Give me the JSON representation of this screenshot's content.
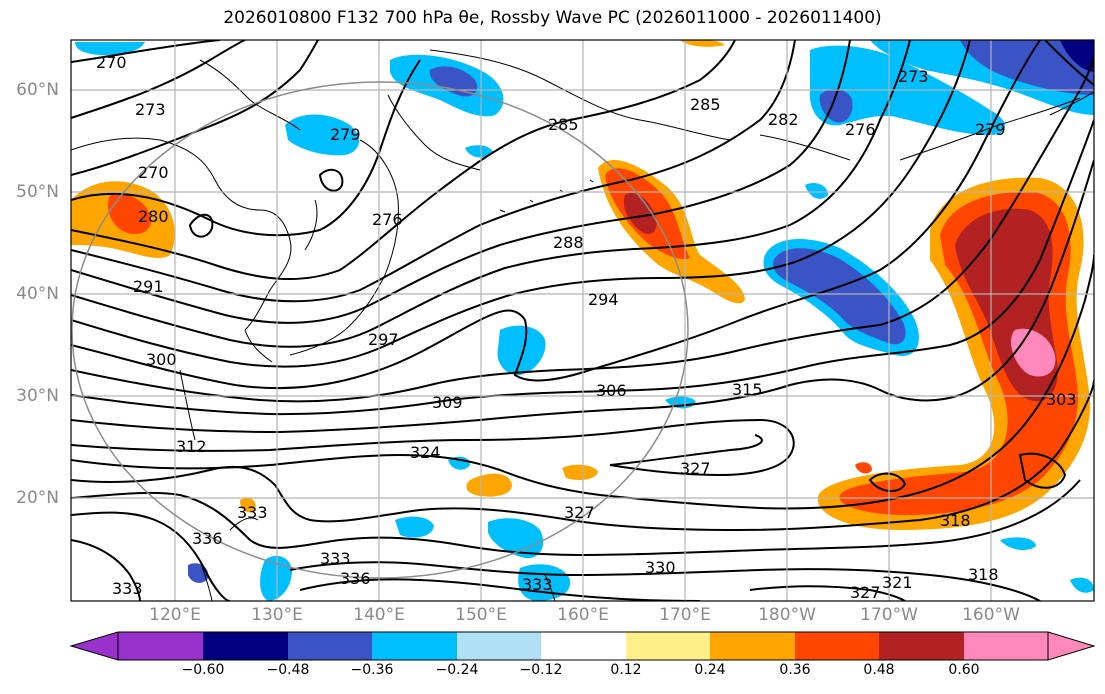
{
  "title": "2026010800 F132 700 hPa θe, Rossby Wave PC (2026011000 - 2026011400)",
  "lat_labels": [
    "60°N",
    "50°N",
    "40°N",
    "30°N",
    "20°N"
  ],
  "lon_labels": [
    "120°E",
    "130°E",
    "140°E",
    "150°E",
    "160°E",
    "170°E",
    "180°W",
    "170°W",
    "160°W"
  ],
  "colorbar": {
    "tick_labels": [
      "−0.60",
      "−0.48",
      "−0.36",
      "−0.24",
      "−0.12",
      "0.12",
      "0.24",
      "0.36",
      "0.48",
      "0.60"
    ],
    "colors": [
      "#9932cc",
      "#000080",
      "#3a53c5",
      "#00bfff",
      "#b0e0f5",
      "#ffffff",
      "#fff08a",
      "#ffa500",
      "#ff4500",
      "#b22222",
      "#ff88bb"
    ]
  },
  "contour_labels": [
    "270",
    "273",
    "270",
    "279",
    "276",
    "280",
    "285",
    "285",
    "282",
    "273",
    "276",
    "279",
    "288",
    "291",
    "294",
    "297",
    "300",
    "306",
    "309",
    "315",
    "303",
    "312",
    "324",
    "327",
    "333",
    "333",
    "336",
    "327",
    "318",
    "330",
    "333",
    "321",
    "327",
    "318",
    "336",
    "333"
  ]
}
